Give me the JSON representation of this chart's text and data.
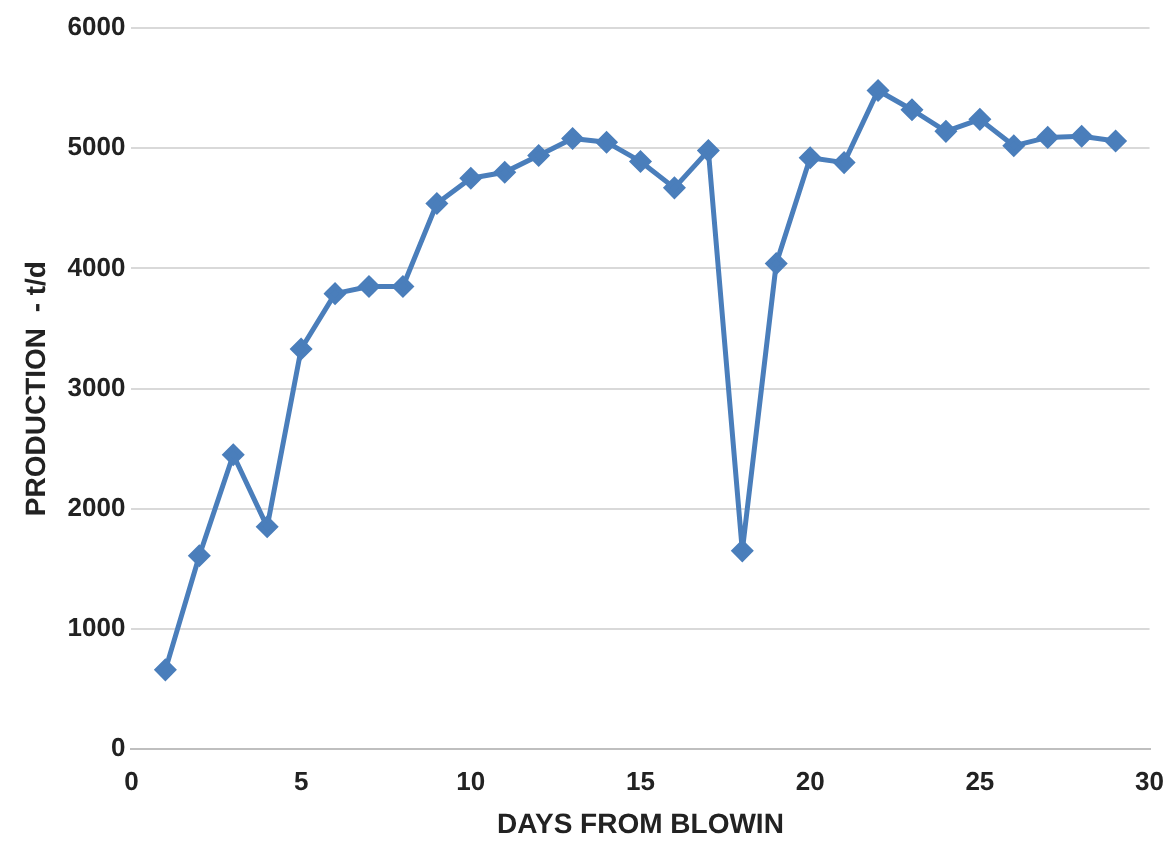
{
  "chart_data": {
    "type": "line",
    "xlabel": "DAYS FROM BLOWIN",
    "ylabel": "PRODUCTION  - t/d",
    "x": [
      1,
      2,
      3,
      4,
      5,
      6,
      7,
      8,
      9,
      10,
      11,
      12,
      13,
      14,
      15,
      16,
      17,
      18,
      19,
      20,
      21,
      22,
      23,
      24,
      25,
      26,
      27,
      28,
      29
    ],
    "series": [
      {
        "color": "#4a7ebb",
        "values": [
          660,
          1610,
          2450,
          1850,
          3330,
          3790,
          3850,
          3850,
          4540,
          4750,
          4800,
          4940,
          5080,
          5050,
          4890,
          4670,
          4980,
          1650,
          4040,
          4920,
          4880,
          5480,
          5320,
          5140,
          5240,
          5020,
          5090,
          5100,
          5060
        ]
      }
    ],
    "xlim": [
      0,
      30
    ],
    "xticks": [
      0,
      5,
      10,
      15,
      20,
      25,
      30
    ],
    "ylim": [
      0,
      6000
    ],
    "yticks": [
      0,
      1000,
      2000,
      3000,
      4000,
      5000,
      6000
    ],
    "grid": "y",
    "legend": false,
    "marker": "diamond",
    "line_style": "solid"
  }
}
